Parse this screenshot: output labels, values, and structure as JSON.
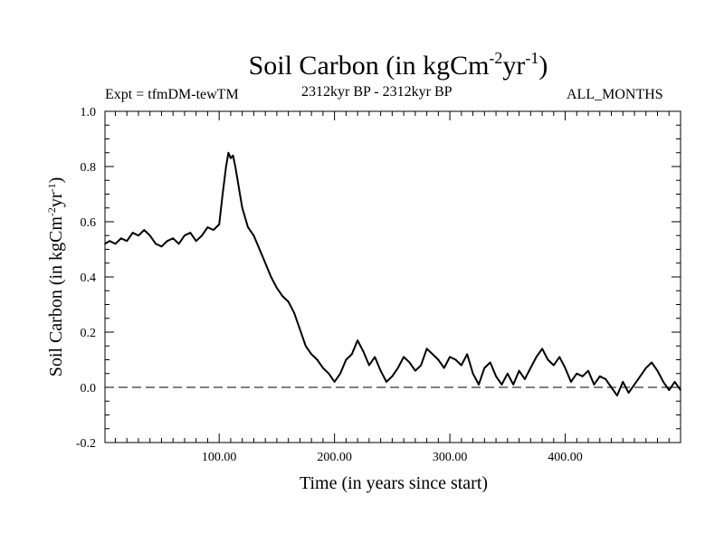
{
  "header": {
    "title_main": "Soil Carbon (in kgCm",
    "title_sup1": "-2",
    "title_mid": "yr",
    "title_sup2": "-1",
    "title_end": ")",
    "experiment": "Expt = tfmDM-tewTM",
    "period": "2312kyr BP - 2312kyr BP",
    "months": "ALL_MONTHS"
  },
  "chart_data": {
    "type": "line",
    "title": "Soil Carbon (in kgCm-2yr-1)",
    "xlabel": "Time (in years since start)",
    "ylabel_main": "Soil Carbon (in kgCm",
    "ylabel_sup1": "-2",
    "ylabel_mid": "yr",
    "ylabel_sup2": "-1",
    "ylabel_end": ")",
    "xlim": [
      1,
      500
    ],
    "ylim": [
      -0.2,
      1.0
    ],
    "x_ticks": [
      100,
      200,
      300,
      400
    ],
    "x_tick_labels": [
      "100.00",
      "200.00",
      "300.00",
      "400.00"
    ],
    "y_ticks": [
      -0.2,
      0.0,
      0.2,
      0.4,
      0.6,
      0.8,
      1.0
    ],
    "y_tick_labels": [
      "-0.2",
      "0.0",
      "0.2",
      "0.4",
      "0.6",
      "0.8",
      "1.0"
    ],
    "reference_line": {
      "y": 0.0,
      "style": "dashed"
    },
    "series": [
      {
        "name": "Soil Carbon",
        "x": [
          1,
          5,
          10,
          15,
          20,
          25,
          30,
          35,
          40,
          45,
          50,
          55,
          60,
          65,
          70,
          75,
          80,
          85,
          90,
          95,
          100,
          103,
          106,
          108,
          110,
          112,
          114,
          116,
          118,
          120,
          125,
          130,
          135,
          140,
          145,
          150,
          155,
          160,
          165,
          170,
          175,
          180,
          185,
          190,
          195,
          200,
          205,
          210,
          215,
          220,
          225,
          230,
          235,
          240,
          245,
          250,
          255,
          260,
          265,
          270,
          275,
          280,
          285,
          290,
          295,
          300,
          305,
          310,
          315,
          320,
          325,
          330,
          335,
          340,
          345,
          350,
          355,
          360,
          365,
          370,
          375,
          380,
          385,
          390,
          395,
          400,
          405,
          410,
          415,
          420,
          425,
          430,
          435,
          440,
          445,
          450,
          455,
          460,
          465,
          470,
          475,
          480,
          485,
          490,
          495,
          500
        ],
        "values": [
          0.52,
          0.53,
          0.52,
          0.54,
          0.53,
          0.56,
          0.55,
          0.57,
          0.55,
          0.52,
          0.51,
          0.53,
          0.54,
          0.52,
          0.55,
          0.56,
          0.53,
          0.55,
          0.58,
          0.57,
          0.59,
          0.7,
          0.8,
          0.85,
          0.83,
          0.84,
          0.8,
          0.75,
          0.7,
          0.65,
          0.58,
          0.55,
          0.5,
          0.45,
          0.4,
          0.36,
          0.33,
          0.31,
          0.27,
          0.21,
          0.15,
          0.12,
          0.1,
          0.07,
          0.05,
          0.02,
          0.05,
          0.1,
          0.12,
          0.17,
          0.13,
          0.08,
          0.11,
          0.06,
          0.02,
          0.04,
          0.07,
          0.11,
          0.09,
          0.06,
          0.08,
          0.14,
          0.12,
          0.1,
          0.07,
          0.11,
          0.1,
          0.08,
          0.12,
          0.05,
          0.01,
          0.07,
          0.09,
          0.04,
          0.01,
          0.05,
          0.01,
          0.06,
          0.03,
          0.07,
          0.11,
          0.14,
          0.1,
          0.08,
          0.11,
          0.07,
          0.02,
          0.05,
          0.04,
          0.06,
          0.01,
          0.04,
          0.03,
          0.0,
          -0.03,
          0.02,
          -0.02,
          0.01,
          0.04,
          0.07,
          0.09,
          0.06,
          0.02,
          -0.01,
          0.02,
          -0.01
        ]
      }
    ]
  }
}
